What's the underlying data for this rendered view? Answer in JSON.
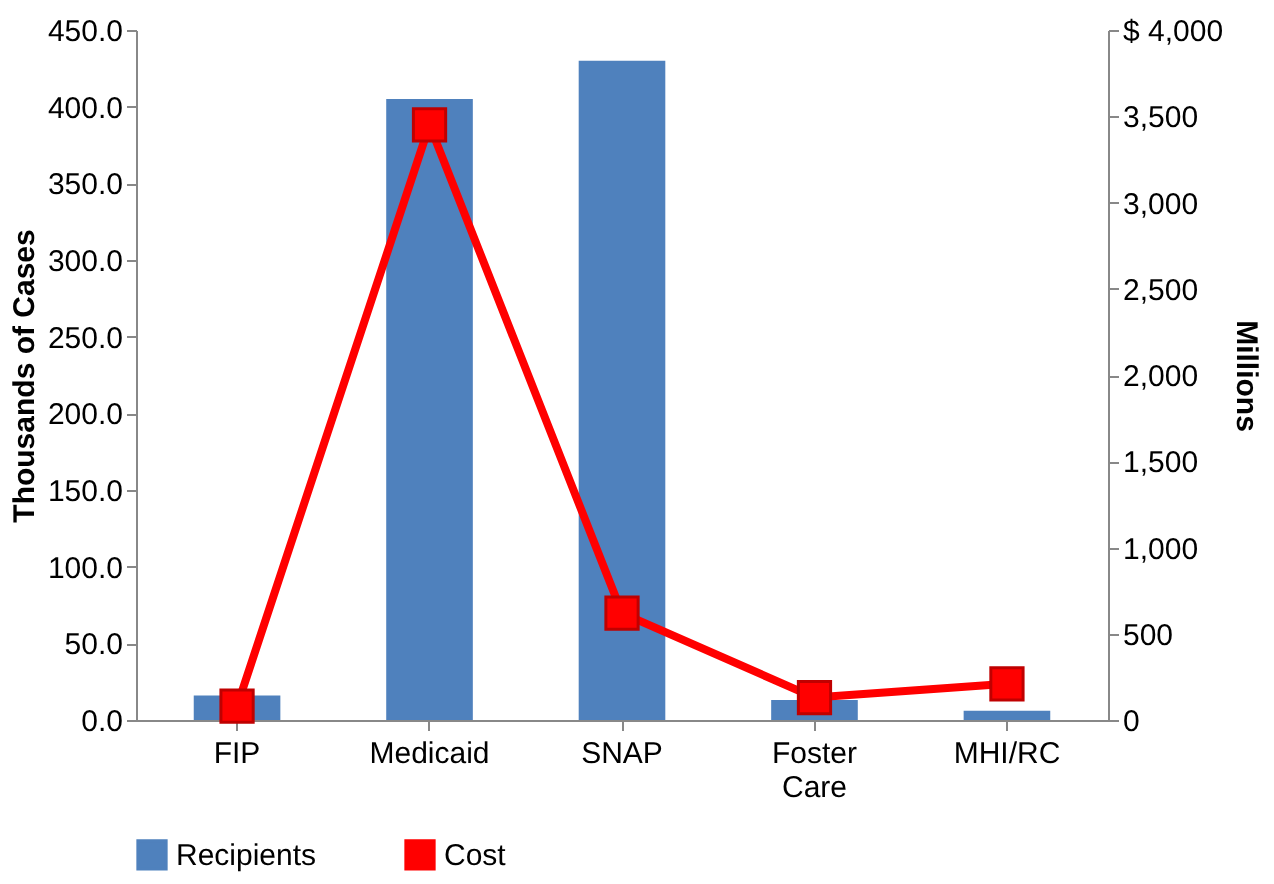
{
  "chart_data": {
    "type": "bar",
    "categories": [
      "FIP",
      "Medicaid",
      "SNAP",
      "Foster Care",
      "MHI/RC"
    ],
    "series": [
      {
        "name": "Recipients",
        "color": "#4f81bd",
        "values": [
          16,
          405,
          430,
          13,
          6
        ]
      },
      {
        "name": "Cost",
        "type": "line",
        "axis": "y2",
        "color": "#ff0000",
        "marker": "square",
        "values": [
          80,
          3450,
          620,
          130,
          210
        ]
      }
    ],
    "ylabel": "Thousands of Cases",
    "y2label": "Millions",
    "ylim": [
      0,
      450
    ],
    "yticks": [
      {
        "value": 0,
        "label": "0.0"
      },
      {
        "value": 50,
        "label": "50.0"
      },
      {
        "value": 100,
        "label": "100.0"
      },
      {
        "value": 150,
        "label": "150.0"
      },
      {
        "value": 200,
        "label": "200.0"
      },
      {
        "value": 250,
        "label": "250.0"
      },
      {
        "value": 300,
        "label": "300.0"
      },
      {
        "value": 350,
        "label": "350.0"
      },
      {
        "value": 400,
        "label": "400.0"
      },
      {
        "value": 450,
        "label": "450.0"
      }
    ],
    "y2lim": [
      0,
      4000
    ],
    "y2ticks": [
      {
        "value": 0,
        "label": "0"
      },
      {
        "value": 500,
        "label": "500"
      },
      {
        "value": 1000,
        "label": "1,000"
      },
      {
        "value": 1500,
        "label": "1,500"
      },
      {
        "value": 2000,
        "label": "2,000"
      },
      {
        "value": 2500,
        "label": "2,500"
      },
      {
        "value": 3000,
        "label": "3,000"
      },
      {
        "value": 3500,
        "label": "3,500"
      },
      {
        "value": 4000,
        "label": "$ 4,000"
      }
    ],
    "grid": false,
    "legend": "bottom"
  }
}
